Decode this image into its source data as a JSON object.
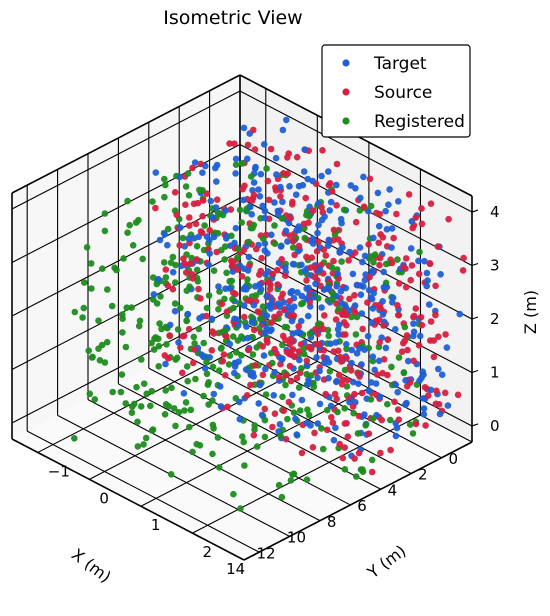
{
  "chart_data": {
    "type": "scatter",
    "projection": "3d-isometric",
    "title": "Isometric View",
    "xlabel": "X (m)",
    "ylabel": "Y (m)",
    "zlabel": "Z (m)",
    "xlim": [
      0,
      15
    ],
    "ylim": [
      -1.5,
      3
    ],
    "zlim": [
      -0.3,
      4.3
    ],
    "x_ticks": [
      "0",
      "2",
      "4",
      "6",
      "8",
      "10",
      "12",
      "14"
    ],
    "y_ticks": [
      "−1",
      "0",
      "1",
      "2"
    ],
    "z_ticks": [
      "0",
      "1",
      "2",
      "3",
      "4"
    ],
    "legend_placement": "top-right",
    "series": [
      {
        "name": "Target",
        "color": "#1f5fd6",
        "point_count": 450,
        "x_range": [
          0,
          8
        ],
        "y_range": [
          -1,
          3
        ],
        "z_range": [
          0,
          4
        ]
      },
      {
        "name": "Source",
        "color": "#d62040",
        "point_count": 450,
        "x_range": [
          0,
          8
        ],
        "y_range": [
          -1,
          3
        ],
        "z_range": [
          0,
          4
        ]
      },
      {
        "name": "Registered",
        "color": "#1e8c1e",
        "point_count": 450,
        "x_range": [
          2,
          14
        ],
        "y_range": [
          -1,
          3
        ],
        "z_range": [
          0,
          4
        ]
      }
    ]
  }
}
